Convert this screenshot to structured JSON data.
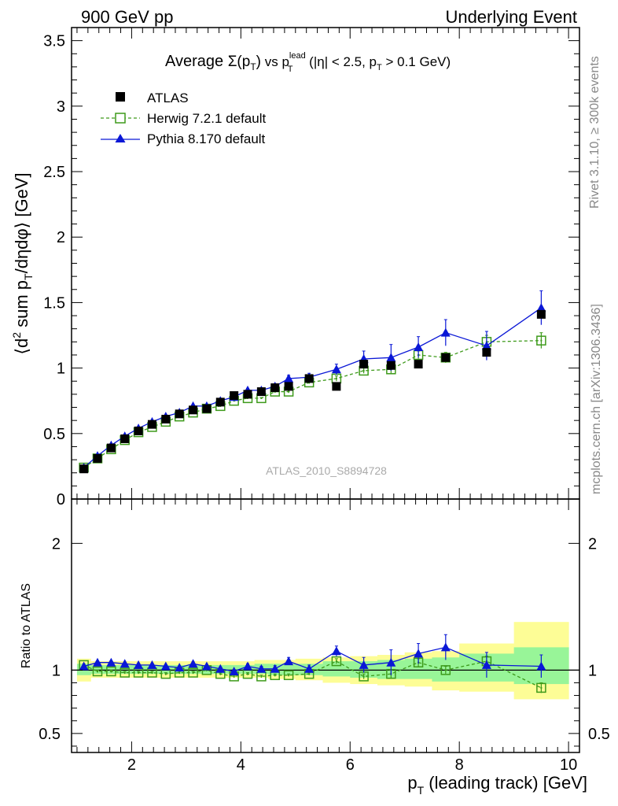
{
  "header": {
    "left": "900 GeV pp",
    "right": "Underlying Event"
  },
  "side_labels": {
    "rivet": "Rivet 3.1.10, ≥ 300k events",
    "mcplots": "mcplots.cern.ch [arXiv:1306.3436]"
  },
  "chart_data": [
    {
      "type": "scatter",
      "title": {
        "pre": "Average ",
        "sigma": "Σ(p",
        "sigma_sub": "T",
        "sigma_close": ")",
        "vs": " vs p",
        "vs_sup": "lead",
        "vs_sub": "T",
        "cut1": " (|η| < 2.5, p",
        "cut_sub": "T",
        "cut2": " > 0.1 GeV)"
      },
      "ylabel": {
        "p1": "⟨d",
        "sup2": "2",
        "p2": " sum p",
        "sub_t": "T",
        "p3": "/dηdφ⟩ [GeV]"
      },
      "watermark": "ATLAS_2010_S8894728",
      "xlim": [
        0.9,
        10.2
      ],
      "ylim": [
        0,
        3.6
      ],
      "yticks": [
        0,
        0.5,
        1,
        1.5,
        2,
        2.5,
        3,
        3.5
      ],
      "ytick_labels": [
        "0",
        "0.5",
        "1",
        "1.5",
        "2",
        "2.5",
        "3",
        "3.5"
      ],
      "legend_position": "top-left",
      "series": [
        {
          "name": "ATLAS",
          "marker": "square-filled",
          "color": "#000000",
          "x": [
            1.125,
            1.375,
            1.625,
            1.875,
            2.125,
            2.375,
            2.625,
            2.875,
            3.125,
            3.375,
            3.625,
            3.875,
            4.125,
            4.375,
            4.625,
            4.875,
            5.25,
            5.75,
            6.25,
            6.75,
            7.25,
            7.75,
            8.5,
            9.5
          ],
          "y": [
            0.23,
            0.31,
            0.39,
            0.46,
            0.52,
            0.57,
            0.61,
            0.65,
            0.68,
            0.69,
            0.74,
            0.79,
            0.8,
            0.82,
            0.85,
            0.86,
            0.92,
            0.86,
            1.03,
            1.02,
            1.03,
            1.08,
            1.12,
            1.41
          ]
        },
        {
          "name": "Herwig 7.2.1 default",
          "marker": "square-open",
          "color": "#3d9a1a",
          "dash": true,
          "x": [
            1.125,
            1.375,
            1.625,
            1.875,
            2.125,
            2.375,
            2.625,
            2.875,
            3.125,
            3.375,
            3.625,
            3.875,
            4.125,
            4.375,
            4.625,
            4.875,
            5.25,
            5.75,
            6.25,
            6.75,
            7.25,
            7.75,
            8.5,
            9.5
          ],
          "y": [
            0.24,
            0.31,
            0.38,
            0.45,
            0.51,
            0.55,
            0.59,
            0.63,
            0.66,
            0.69,
            0.71,
            0.75,
            0.77,
            0.77,
            0.82,
            0.82,
            0.89,
            0.92,
            0.98,
            0.99,
            1.1,
            1.08,
            1.2,
            1.21
          ],
          "yerr": [
            0.005,
            0.005,
            0.005,
            0.005,
            0.005,
            0.005,
            0.005,
            0.005,
            0.005,
            0.005,
            0.005,
            0.005,
            0.005,
            0.005,
            0.01,
            0.01,
            0.01,
            0.02,
            0.02,
            0.03,
            0.03,
            0.04,
            0.05,
            0.06
          ]
        },
        {
          "name": "Pythia 8.170 default",
          "marker": "triangle-filled",
          "color": "#0a17d6",
          "x": [
            1.125,
            1.375,
            1.625,
            1.875,
            2.125,
            2.375,
            2.625,
            2.875,
            3.125,
            3.375,
            3.625,
            3.875,
            4.125,
            4.375,
            4.625,
            4.875,
            5.25,
            5.75,
            6.25,
            6.75,
            7.25,
            7.75,
            8.5,
            9.5
          ],
          "y": [
            0.24,
            0.33,
            0.41,
            0.48,
            0.54,
            0.59,
            0.63,
            0.66,
            0.71,
            0.71,
            0.75,
            0.78,
            0.83,
            0.83,
            0.86,
            0.92,
            0.93,
            0.99,
            1.07,
            1.08,
            1.16,
            1.27,
            1.17,
            1.46
          ],
          "yerr": [
            0.005,
            0.005,
            0.005,
            0.005,
            0.005,
            0.005,
            0.005,
            0.005,
            0.01,
            0.01,
            0.01,
            0.01,
            0.015,
            0.015,
            0.02,
            0.025,
            0.03,
            0.04,
            0.06,
            0.1,
            0.08,
            0.1,
            0.11,
            0.13
          ]
        }
      ]
    },
    {
      "type": "scatter",
      "ylabel": "Ratio to ATLAS",
      "xlabel": {
        "p1": "p",
        "sub": "T",
        "p2": " (leading track) [GeV]"
      },
      "xlim": [
        0.9,
        10.2
      ],
      "ylim": [
        0.35,
        2.35
      ],
      "yticks": [
        0.5,
        1,
        2
      ],
      "ytick_labels": [
        "0.5",
        "1",
        "2"
      ],
      "xticks": [
        2,
        4,
        6,
        8,
        10
      ],
      "xtick_labels": [
        "2",
        "4",
        "6",
        "8",
        "10"
      ],
      "reference_line": 1,
      "bins": {
        "edges": [
          1.0,
          1.25,
          1.5,
          1.75,
          2.0,
          2.25,
          2.5,
          2.75,
          3.0,
          3.25,
          3.5,
          3.75,
          4.0,
          4.25,
          4.5,
          4.75,
          5.0,
          5.5,
          6.0,
          6.5,
          7.0,
          7.5,
          8.0,
          9.0,
          10.0
        ],
        "band_yellow": [
          [
            0.91,
            1.09
          ],
          [
            0.94,
            1.07
          ],
          [
            0.94,
            1.07
          ],
          [
            0.94,
            1.07
          ],
          [
            0.94,
            1.07
          ],
          [
            0.94,
            1.07
          ],
          [
            0.94,
            1.07
          ],
          [
            0.94,
            1.07
          ],
          [
            0.94,
            1.07
          ],
          [
            0.94,
            1.07
          ],
          [
            0.94,
            1.07
          ],
          [
            0.94,
            1.07
          ],
          [
            0.94,
            1.07
          ],
          [
            0.94,
            1.08
          ],
          [
            0.93,
            1.08
          ],
          [
            0.93,
            1.08
          ],
          [
            0.92,
            1.09
          ],
          [
            0.9,
            1.1
          ],
          [
            0.89,
            1.11
          ],
          [
            0.88,
            1.12
          ],
          [
            0.87,
            1.14
          ],
          [
            0.84,
            1.15
          ],
          [
            0.83,
            1.21
          ],
          [
            0.77,
            1.38
          ]
        ],
        "band_green": [
          [
            0.96,
            1.05
          ],
          [
            0.97,
            1.04
          ],
          [
            0.97,
            1.04
          ],
          [
            0.97,
            1.04
          ],
          [
            0.97,
            1.04
          ],
          [
            0.97,
            1.04
          ],
          [
            0.97,
            1.04
          ],
          [
            0.97,
            1.04
          ],
          [
            0.97,
            1.04
          ],
          [
            0.97,
            1.04
          ],
          [
            0.97,
            1.04
          ],
          [
            0.97,
            1.04
          ],
          [
            0.97,
            1.04
          ],
          [
            0.97,
            1.05
          ],
          [
            0.96,
            1.05
          ],
          [
            0.96,
            1.05
          ],
          [
            0.96,
            1.05
          ],
          [
            0.95,
            1.07
          ],
          [
            0.94,
            1.07
          ],
          [
            0.93,
            1.08
          ],
          [
            0.93,
            1.09
          ],
          [
            0.91,
            1.1
          ],
          [
            0.91,
            1.13
          ],
          [
            0.89,
            1.18
          ]
        ]
      },
      "series": [
        {
          "name": "Herwig 7.2.1 default",
          "marker": "square-open",
          "color": "#3d9a1a",
          "dash": true,
          "x": [
            1.125,
            1.375,
            1.625,
            1.875,
            2.125,
            2.375,
            2.625,
            2.875,
            3.125,
            3.375,
            3.625,
            3.875,
            4.125,
            4.375,
            4.625,
            4.875,
            5.25,
            5.75,
            6.25,
            6.75,
            7.25,
            7.75,
            8.5,
            9.5
          ],
          "y": [
            1.04,
            0.99,
            0.99,
            0.98,
            0.98,
            0.98,
            0.97,
            0.98,
            0.98,
            1.0,
            0.97,
            0.95,
            0.97,
            0.95,
            0.96,
            0.96,
            0.97,
            1.07,
            0.95,
            0.97,
            1.06,
            1.0,
            1.07,
            0.86
          ],
          "yerr": [
            0.01,
            0.01,
            0.01,
            0.01,
            0.01,
            0.01,
            0.01,
            0.01,
            0.01,
            0.01,
            0.01,
            0.01,
            0.01,
            0.01,
            0.01,
            0.01,
            0.01,
            0.02,
            0.02,
            0.03,
            0.03,
            0.03,
            0.04,
            0.04
          ]
        },
        {
          "name": "Pythia 8.170 default",
          "marker": "triangle-filled",
          "color": "#0a17d6",
          "x": [
            1.125,
            1.375,
            1.625,
            1.875,
            2.125,
            2.375,
            2.625,
            2.875,
            3.125,
            3.375,
            3.625,
            3.875,
            4.125,
            4.375,
            4.625,
            4.875,
            5.25,
            5.75,
            6.25,
            6.75,
            7.25,
            7.75,
            8.5,
            9.5
          ],
          "y": [
            1.03,
            1.06,
            1.06,
            1.05,
            1.04,
            1.04,
            1.03,
            1.02,
            1.05,
            1.03,
            1.01,
            0.99,
            1.03,
            1.01,
            1.01,
            1.07,
            1.01,
            1.15,
            1.04,
            1.06,
            1.13,
            1.18,
            1.04,
            1.03
          ],
          "yerr": [
            0.01,
            0.01,
            0.01,
            0.01,
            0.01,
            0.01,
            0.01,
            0.01,
            0.015,
            0.015,
            0.015,
            0.015,
            0.02,
            0.02,
            0.025,
            0.03,
            0.03,
            0.04,
            0.06,
            0.1,
            0.08,
            0.1,
            0.1,
            0.09
          ]
        }
      ]
    }
  ]
}
